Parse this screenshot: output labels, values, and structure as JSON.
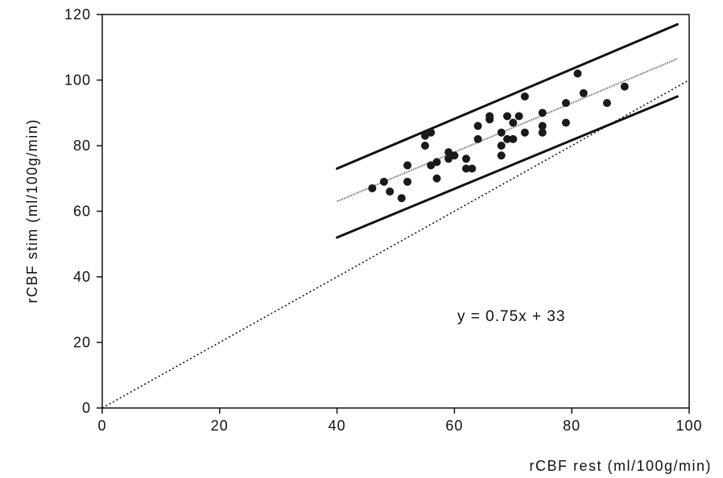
{
  "chart_data": {
    "type": "scatter",
    "xlabel": "rCBF rest (ml/100g/min)",
    "ylabel": "rCBF stim (ml/100g/min)",
    "xlim": [
      0,
      100
    ],
    "ylim": [
      0,
      120
    ],
    "x_ticks": [
      "0",
      "20",
      "40",
      "60",
      "80",
      "100"
    ],
    "y_ticks": [
      "0",
      "20",
      "40",
      "60",
      "80",
      "100",
      "120"
    ],
    "grid": false,
    "annotation": "y = 0.75x + 33",
    "points": [
      [
        46,
        67
      ],
      [
        48,
        69
      ],
      [
        49,
        66
      ],
      [
        51,
        64
      ],
      [
        52,
        74
      ],
      [
        52,
        69
      ],
      [
        55,
        83
      ],
      [
        55,
        80
      ],
      [
        56,
        84
      ],
      [
        56,
        74
      ],
      [
        57,
        75
      ],
      [
        57,
        70
      ],
      [
        59,
        78
      ],
      [
        59,
        76
      ],
      [
        60,
        77
      ],
      [
        62,
        76
      ],
      [
        62,
        73
      ],
      [
        63,
        73
      ],
      [
        64,
        86
      ],
      [
        64,
        82
      ],
      [
        66,
        89
      ],
      [
        66,
        88
      ],
      [
        68,
        84
      ],
      [
        68,
        80
      ],
      [
        68,
        77
      ],
      [
        69,
        89
      ],
      [
        69,
        82
      ],
      [
        70,
        87
      ],
      [
        70,
        82
      ],
      [
        71,
        89
      ],
      [
        72,
        95
      ],
      [
        72,
        84
      ],
      [
        75,
        90
      ],
      [
        75,
        86
      ],
      [
        75,
        84
      ],
      [
        79,
        93
      ],
      [
        79,
        87
      ],
      [
        81,
        102
      ],
      [
        82,
        96
      ],
      [
        86,
        93
      ],
      [
        89,
        98
      ]
    ],
    "lines": [
      {
        "kind": "regression",
        "style": "dashed-gray",
        "x": [
          40,
          98
        ],
        "y": [
          63,
          106.5
        ]
      },
      {
        "kind": "upper-bound",
        "style": "solid-bold",
        "x": [
          40,
          98
        ],
        "y": [
          73,
          117
        ]
      },
      {
        "kind": "lower-bound",
        "style": "solid-bold",
        "x": [
          40,
          98
        ],
        "y": [
          52,
          95
        ]
      },
      {
        "kind": "identity",
        "style": "dotted",
        "x": [
          0,
          100
        ],
        "y": [
          0,
          100
        ]
      }
    ],
    "colors": {
      "points": "#1a1a1a",
      "bounds": "#111111",
      "regression": "#8a8a8a",
      "identity": "#111111",
      "axis": "#111111"
    }
  }
}
